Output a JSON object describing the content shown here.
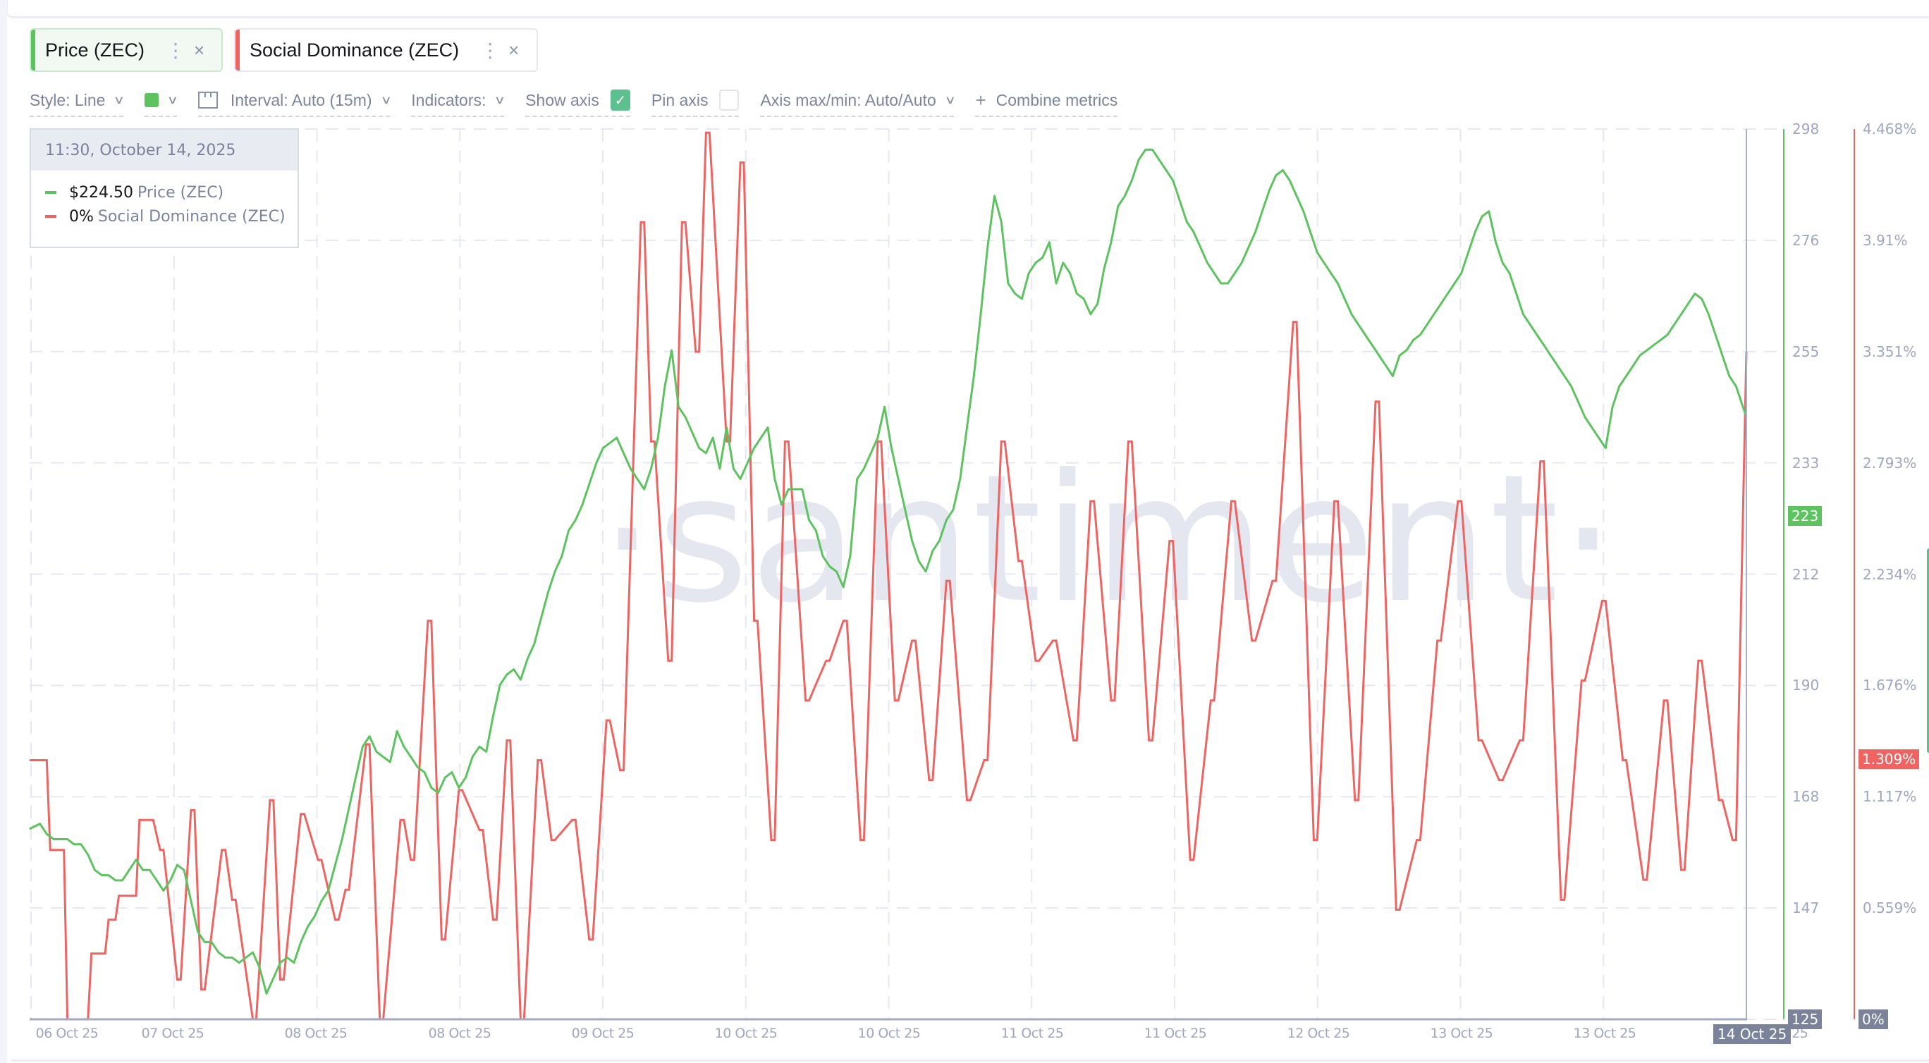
{
  "metric_tabs": [
    {
      "label": "Price (ZEC)",
      "color": "#5dc35f",
      "menu_icon": "vertical-dots-icon",
      "close_icon": "close-icon"
    },
    {
      "label": "Social Dominance (ZEC)",
      "color": "#ef6461",
      "menu_icon": "vertical-dots-icon",
      "close_icon": "close-icon"
    }
  ],
  "toolbar": {
    "style_label": "Style: Line",
    "color_swatch": "#5dc35f",
    "interval_label": "Interval: Auto (15m)",
    "indicators_label": "Indicators:",
    "show_axis_label": "Show axis",
    "show_axis_checked": true,
    "pin_axis_label": "Pin axis",
    "pin_axis_checked": false,
    "axis_maxmin_label": "Axis max/min: Auto/Auto",
    "combine_label": "Combine metrics",
    "check_glyph": "✓",
    "chevron_glyph": "⌄",
    "plus_glyph": "+"
  },
  "tooltip": {
    "datetime": "11:30, October 14, 2025",
    "rows": [
      {
        "value": "$224.50",
        "name": "Price (ZEC)",
        "color": "#5dc35f"
      },
      {
        "value": "0%",
        "name": "Social Dominance (ZEC)",
        "color": "#ef6461"
      }
    ]
  },
  "watermark": "·santiment·",
  "current_badges": {
    "price": "223",
    "price_color": "#5dc35f",
    "social": "1.309%",
    "social_color": "#ef6461",
    "price_min": "125",
    "social_min": "0%",
    "cursor_date": "14 Oct 25"
  },
  "chart_data": {
    "type": "line",
    "title": "",
    "xlabel": "",
    "x_ticks": [
      "06 Oct 25",
      "07 Oct 25",
      "08 Oct 25",
      "08 Oct 25",
      "09 Oct 25",
      "10 Oct 25",
      "10 Oct 25",
      "11 Oct 25",
      "11 Oct 25",
      "12 Oct 25",
      "13 Oct 25",
      "13 Oct 25",
      "14 Oct 25"
    ],
    "grid": true,
    "interval": "15m",
    "y_axes": [
      {
        "name": "Price (ZEC)",
        "color": "#5dc35f",
        "ticks": [
          "298",
          "276",
          "255",
          "233",
          "212",
          "190",
          "168",
          "147",
          "125"
        ],
        "range": [
          125,
          298
        ]
      },
      {
        "name": "Social Dominance (ZEC)",
        "color": "#ef6461",
        "ticks": [
          "4.468%",
          "3.91%",
          "3.351%",
          "2.793%",
          "2.234%",
          "1.676%",
          "1.117%",
          "0.559%",
          "0%"
        ],
        "range": [
          0,
          4.468
        ]
      }
    ],
    "series": [
      {
        "name": "Price (ZEC)",
        "color": "#5dc35f",
        "unit": "USD",
        "x_frac": [
          0.0,
          0.006,
          0.01,
          0.014,
          0.018,
          0.022,
          0.026,
          0.03,
          0.034,
          0.038,
          0.042,
          0.046,
          0.05,
          0.054,
          0.058,
          0.062,
          0.066,
          0.07,
          0.074,
          0.078,
          0.082,
          0.086,
          0.09,
          0.094,
          0.098,
          0.102,
          0.106,
          0.11,
          0.114,
          0.118,
          0.122,
          0.126,
          0.13,
          0.134,
          0.138,
          0.142,
          0.146,
          0.15,
          0.154,
          0.158,
          0.162,
          0.166,
          0.17,
          0.174,
          0.178,
          0.182,
          0.186,
          0.19,
          0.194,
          0.198,
          0.202,
          0.206,
          0.21,
          0.214,
          0.218,
          0.222,
          0.226,
          0.23,
          0.234,
          0.238,
          0.242,
          0.246,
          0.25,
          0.254,
          0.258,
          0.262,
          0.266,
          0.27,
          0.274,
          0.278,
          0.282,
          0.286,
          0.29,
          0.294,
          0.298,
          0.302,
          0.306,
          0.31,
          0.314,
          0.318,
          0.322,
          0.326,
          0.33,
          0.334,
          0.338,
          0.342,
          0.346,
          0.35,
          0.354,
          0.358,
          0.362,
          0.366,
          0.37,
          0.374,
          0.378,
          0.382,
          0.386,
          0.39,
          0.394,
          0.398,
          0.402,
          0.406,
          0.41,
          0.414,
          0.418,
          0.422,
          0.426,
          0.43,
          0.434,
          0.438,
          0.442,
          0.446,
          0.45,
          0.454,
          0.458,
          0.462,
          0.466,
          0.47,
          0.474,
          0.478,
          0.482,
          0.486,
          0.49,
          0.494,
          0.498,
          0.502,
          0.506,
          0.51,
          0.514,
          0.518,
          0.522,
          0.526,
          0.53,
          0.534,
          0.538,
          0.542,
          0.546,
          0.55,
          0.554,
          0.558,
          0.562,
          0.566,
          0.57,
          0.574,
          0.578,
          0.582,
          0.586,
          0.59,
          0.594,
          0.598,
          0.602,
          0.606,
          0.61,
          0.614,
          0.618,
          0.622,
          0.626,
          0.63,
          0.634,
          0.638,
          0.642,
          0.646,
          0.65,
          0.654,
          0.658,
          0.662,
          0.666,
          0.67,
          0.674,
          0.678,
          0.682,
          0.686,
          0.69,
          0.694,
          0.698,
          0.702,
          0.706,
          0.71,
          0.714,
          0.718,
          0.722,
          0.726,
          0.73,
          0.734,
          0.738,
          0.742,
          0.746,
          0.75,
          0.754,
          0.758,
          0.762,
          0.766,
          0.77,
          0.774,
          0.778,
          0.782,
          0.786,
          0.79,
          0.794,
          0.798,
          0.802,
          0.806,
          0.81,
          0.814,
          0.818,
          0.822,
          0.826,
          0.83,
          0.834,
          0.838,
          0.842,
          0.846,
          0.85,
          0.854,
          0.858,
          0.862,
          0.866,
          0.87,
          0.874,
          0.878,
          0.882,
          0.886,
          0.89,
          0.894,
          0.898,
          0.902,
          0.906,
          0.91,
          0.914,
          0.918,
          0.922,
          0.926,
          0.93,
          0.934,
          0.938,
          0.942,
          0.946,
          0.95,
          0.954,
          0.958,
          0.962,
          0.966,
          0.97,
          0.974,
          0.978,
          0.982,
          0.986,
          0.99,
          0.994,
          0.998,
          1.0
        ],
        "values": [
          162,
          163,
          161,
          160,
          160,
          160,
          159,
          159,
          157,
          154,
          153,
          153,
          152,
          152,
          154,
          156,
          154,
          154,
          152,
          150,
          152,
          155,
          154,
          148,
          142,
          140,
          140,
          138,
          137,
          137,
          136,
          137,
          138,
          135,
          130,
          133,
          136,
          137,
          136,
          140,
          143,
          145,
          148,
          150,
          155,
          160,
          166,
          172,
          178,
          180,
          177,
          176,
          175,
          181,
          178,
          176,
          174,
          173,
          170,
          169,
          172,
          173,
          170,
          172,
          176,
          178,
          177,
          184,
          190,
          192,
          193,
          191,
          195,
          198,
          203,
          208,
          212,
          215,
          220,
          222,
          225,
          229,
          233,
          236,
          237,
          238,
          235,
          232,
          230,
          228,
          232,
          238,
          248,
          255,
          244,
          242,
          239,
          236,
          235,
          238,
          232,
          240,
          232,
          230,
          233,
          236,
          238,
          240,
          230,
          225,
          228,
          228,
          228,
          222,
          220,
          215,
          213,
          212,
          209,
          215,
          230,
          232,
          235,
          238,
          244,
          236,
          230,
          224,
          218,
          214,
          212,
          216,
          218,
          222,
          224,
          230,
          240,
          250,
          262,
          275,
          285,
          280,
          268,
          266,
          265,
          270,
          272,
          273,
          276,
          268,
          272,
          270,
          266,
          265,
          262,
          264,
          271,
          276,
          283,
          285,
          288,
          292,
          294,
          294,
          292,
          290,
          288,
          284,
          280,
          278,
          275,
          272,
          270,
          268,
          268,
          270,
          272,
          275,
          278,
          282,
          286,
          289,
          290,
          288,
          285,
          282,
          278,
          274,
          272,
          270,
          268,
          265,
          262,
          260,
          258,
          256,
          254,
          252,
          250,
          254,
          255,
          257,
          258,
          260,
          262,
          264,
          266,
          268,
          270,
          274,
          278,
          281,
          282,
          276,
          272,
          270,
          266,
          262,
          260,
          258,
          256,
          254,
          252,
          250,
          248,
          245,
          242,
          240,
          238,
          236,
          244,
          248,
          250,
          252,
          254,
          255,
          256,
          257,
          258,
          260,
          262,
          264,
          266,
          265,
          262,
          258,
          254,
          250,
          248,
          244,
          242,
          238,
          236,
          234,
          232,
          230,
          228,
          226,
          225,
          224.5
        ]
      },
      {
        "name": "Social Dominance (ZEC)",
        "color": "#ef6461",
        "unit": "%",
        "style": "step",
        "x_frac": [
          0.0,
          0.01,
          0.012,
          0.02,
          0.022,
          0.034,
          0.036,
          0.044,
          0.046,
          0.05,
          0.052,
          0.062,
          0.064,
          0.072,
          0.076,
          0.078,
          0.086,
          0.088,
          0.094,
          0.096,
          0.1,
          0.102,
          0.112,
          0.114,
          0.118,
          0.12,
          0.13,
          0.132,
          0.14,
          0.142,
          0.146,
          0.148,
          0.158,
          0.16,
          0.168,
          0.17,
          0.178,
          0.18,
          0.184,
          0.186,
          0.196,
          0.198,
          0.204,
          0.206,
          0.216,
          0.218,
          0.222,
          0.224,
          0.232,
          0.234,
          0.24,
          0.242,
          0.25,
          0.252,
          0.262,
          0.264,
          0.27,
          0.272,
          0.278,
          0.28,
          0.286,
          0.288,
          0.296,
          0.298,
          0.304,
          0.306,
          0.316,
          0.318,
          0.326,
          0.328,
          0.336,
          0.338,
          0.344,
          0.346,
          0.356,
          0.358,
          0.362,
          0.364,
          0.372,
          0.374,
          0.38,
          0.382,
          0.388,
          0.39,
          0.394,
          0.396,
          0.406,
          0.408,
          0.414,
          0.416,
          0.422,
          0.424,
          0.432,
          0.434,
          0.44,
          0.442,
          0.452,
          0.454,
          0.464,
          0.466,
          0.474,
          0.476,
          0.484,
          0.486,
          0.494,
          0.496,
          0.504,
          0.506,
          0.514,
          0.516,
          0.524,
          0.526,
          0.534,
          0.536,
          0.546,
          0.548,
          0.556,
          0.558,
          0.566,
          0.568,
          0.576,
          0.578,
          0.586,
          0.588,
          0.596,
          0.598,
          0.608,
          0.61,
          0.618,
          0.62,
          0.63,
          0.632,
          0.64,
          0.642,
          0.652,
          0.654,
          0.664,
          0.666,
          0.676,
          0.678,
          0.688,
          0.69,
          0.7,
          0.702,
          0.712,
          0.714,
          0.724,
          0.726,
          0.736,
          0.738,
          0.748,
          0.75,
          0.76,
          0.762,
          0.772,
          0.774,
          0.784,
          0.786,
          0.796,
          0.798,
          0.808,
          0.81,
          0.82,
          0.822,
          0.832,
          0.834,
          0.844,
          0.846,
          0.856,
          0.858,
          0.868,
          0.87,
          0.88,
          0.882,
          0.892,
          0.894,
          0.904,
          0.906,
          0.916,
          0.918,
          0.928,
          0.93,
          0.94,
          0.942,
          0.952,
          0.954,
          0.962,
          0.964,
          0.972,
          0.974,
          0.984,
          0.986,
          0.992,
          0.994,
          1.0
        ],
        "values": [
          1.3,
          1.3,
          0.85,
          0.85,
          0.0,
          0.0,
          0.33,
          0.33,
          0.5,
          0.5,
          0.62,
          0.62,
          1.0,
          1.0,
          0.85,
          0.85,
          0.2,
          0.2,
          1.05,
          1.05,
          0.15,
          0.15,
          0.85,
          0.85,
          0.6,
          0.6,
          0.0,
          0.0,
          1.1,
          1.1,
          0.2,
          0.2,
          1.03,
          1.03,
          0.8,
          0.8,
          0.5,
          0.5,
          0.65,
          0.65,
          1.38,
          1.38,
          0.0,
          0.0,
          1.0,
          1.0,
          0.8,
          0.8,
          2.0,
          2.0,
          0.4,
          0.4,
          1.15,
          1.15,
          0.95,
          0.95,
          0.5,
          0.5,
          1.4,
          1.4,
          0.0,
          0.0,
          1.3,
          1.3,
          0.9,
          0.9,
          1.0,
          1.0,
          0.4,
          0.4,
          1.5,
          1.5,
          1.25,
          1.25,
          4.0,
          4.0,
          2.9,
          2.9,
          1.8,
          1.8,
          4.0,
          4.0,
          3.35,
          3.35,
          4.45,
          4.45,
          2.9,
          2.9,
          4.3,
          4.3,
          2.0,
          2.0,
          0.9,
          0.9,
          2.9,
          2.9,
          1.6,
          1.6,
          1.8,
          1.8,
          2.0,
          2.0,
          0.9,
          0.9,
          2.9,
          2.9,
          1.6,
          1.6,
          1.9,
          1.9,
          1.2,
          1.2,
          2.2,
          2.2,
          1.1,
          1.1,
          1.3,
          1.3,
          2.9,
          2.9,
          2.3,
          2.3,
          1.8,
          1.8,
          1.9,
          1.9,
          1.4,
          1.4,
          2.6,
          2.6,
          1.6,
          1.6,
          2.9,
          2.9,
          1.4,
          1.4,
          2.4,
          2.4,
          0.8,
          0.8,
          1.6,
          1.6,
          2.6,
          2.6,
          1.9,
          1.9,
          2.2,
          2.2,
          3.5,
          3.5,
          0.9,
          0.9,
          2.6,
          2.6,
          1.1,
          1.1,
          3.1,
          3.1,
          0.55,
          0.55,
          0.9,
          0.9,
          1.9,
          1.9,
          2.6,
          2.6,
          1.4,
          1.4,
          1.2,
          1.2,
          1.4,
          1.4,
          2.8,
          2.8,
          0.6,
          0.6,
          1.7,
          1.7,
          2.1,
          2.1,
          1.3,
          1.3,
          0.7,
          0.7,
          1.6,
          1.6,
          0.75,
          0.75,
          1.8,
          1.8,
          1.1,
          1.1,
          0.9,
          0.9,
          3.35,
          3.35,
          1.4,
          1.4,
          0.0
        ]
      }
    ]
  }
}
